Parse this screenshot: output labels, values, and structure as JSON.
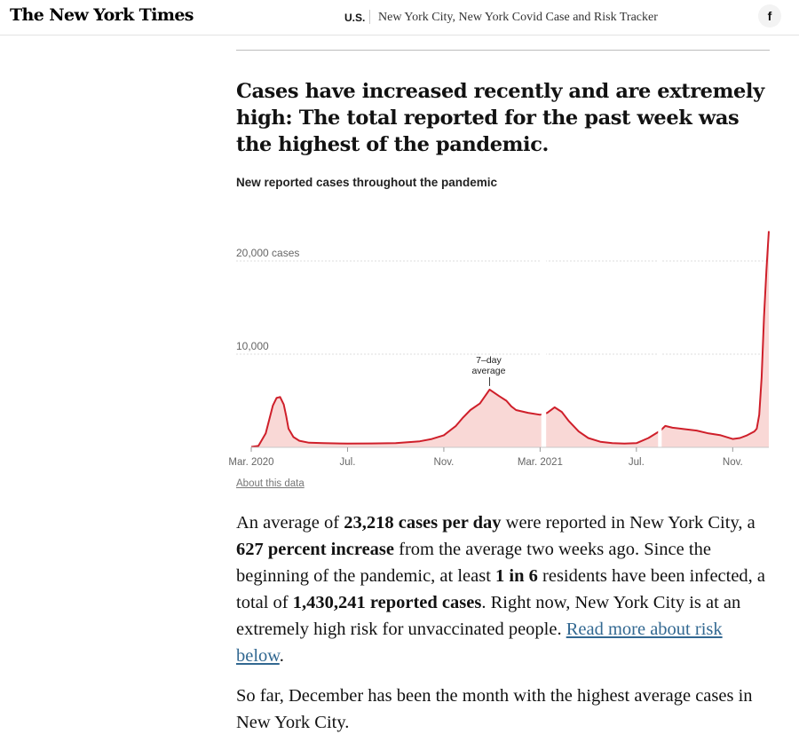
{
  "header": {
    "logo": "The New York Times",
    "section": "U.S.",
    "article_title": "New York City, New York Covid Case and Risk Tracker",
    "share_icon": "facebook-icon",
    "share_label": "f"
  },
  "headline": "Cases have increased recently and are extremely high: The total reported for the past week was the highest of the pandemic.",
  "chart_subtitle": "New reported cases throughout the pandemic",
  "about_link": "About this data",
  "paragraph1": {
    "t1": "An average of ",
    "b1": "23,218 cases per day",
    "t2": " were reported in New York City, a ",
    "b2": "627 percent increase",
    "t3": " from the average two weeks ago. Since the beginning of the pandemic, at least ",
    "b3": "1 in 6",
    "t4": " residents have been infected, a total of ",
    "b4": "1,430,241 reported cases",
    "t5": ". Right now, New York City is at an extremely high risk for unvaccinated people. ",
    "link": "Read more about risk below",
    "t6": "."
  },
  "paragraph2": "So far, December has been the month with the highest average cases in New York City.",
  "chart_data": {
    "type": "area",
    "series_label": "7–day average",
    "annotation_line1": "7–day",
    "annotation_line2": "average",
    "y_ticks": [
      {
        "value": 20000,
        "label": "20,000 cases"
      },
      {
        "value": 10000,
        "label": "10,000"
      }
    ],
    "ylim": [
      0,
      24000
    ],
    "x_ticks": [
      {
        "month": 0,
        "label": "Mar. 2020"
      },
      {
        "month": 4,
        "label": "Jul."
      },
      {
        "month": 8,
        "label": "Nov."
      },
      {
        "month": 12,
        "label": "Mar. 2021"
      },
      {
        "month": 16,
        "label": "Jul."
      },
      {
        "month": 20,
        "label": "Nov."
      }
    ],
    "xlim": [
      0,
      21.5
    ],
    "colors": {
      "line": "#cf1f2a",
      "fill": "#f9d8d6",
      "grid": "#dddddd",
      "tick": "#666666"
    },
    "x": [
      0,
      0.3,
      0.6,
      0.9,
      1.05,
      1.2,
      1.35,
      1.45,
      1.55,
      1.75,
      2.0,
      2.4,
      3,
      4,
      5,
      6,
      7,
      7.5,
      8,
      8.5,
      8.8,
      9.1,
      9.5,
      9.9,
      10.3,
      10.6,
      10.8,
      11.0,
      11.5,
      12,
      12.3,
      12.6,
      12.9,
      13.2,
      13.6,
      14,
      14.5,
      15,
      15.5,
      16,
      16.5,
      17,
      17.2,
      17.5,
      18,
      18.5,
      19,
      19.5,
      20,
      20.3,
      20.6,
      20.9,
      21.0,
      21.1,
      21.2,
      21.3,
      21.4,
      21.5
    ],
    "y": [
      50,
      150,
      1500,
      4500,
      5300,
      5400,
      4600,
      3400,
      2000,
      1100,
      700,
      500,
      450,
      400,
      420,
      450,
      650,
      900,
      1300,
      2300,
      3200,
      4000,
      4700,
      6200,
      5500,
      5000,
      4400,
      4000,
      3700,
      3500,
      3700,
      4300,
      3800,
      2800,
      1700,
      1000,
      600,
      450,
      400,
      450,
      1000,
      1800,
      2300,
      2100,
      1950,
      1800,
      1500,
      1300,
      900,
      1000,
      1300,
      1700,
      2000,
      3500,
      7500,
      14000,
      19000,
      23200
    ],
    "gaps": [
      [
        12.05,
        12.25
      ],
      [
        16.9,
        17.05
      ]
    ]
  }
}
